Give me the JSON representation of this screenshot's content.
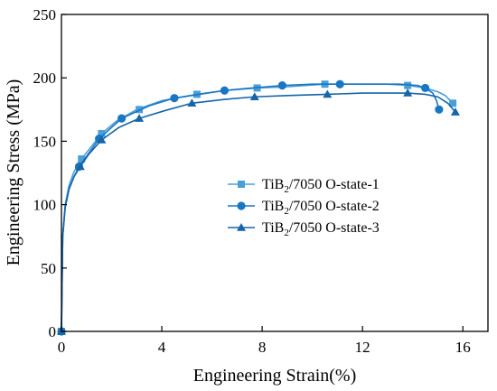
{
  "chart_data": {
    "type": "line",
    "xlabel": "Engineering Strain(%)",
    "ylabel": "Engineering Stress (MPa)",
    "xlim": [
      0,
      17
    ],
    "ylim": [
      0,
      250
    ],
    "xticks": [
      0,
      4,
      8,
      12,
      16
    ],
    "yticks": [
      0,
      50,
      100,
      150,
      200,
      250
    ],
    "grid": false,
    "legend_position": "right-middle",
    "series": [
      {
        "name": "TiB2/7050 O-state-1",
        "legend_parts": {
          "pre": "TiB",
          "sub": "2",
          "post": "/7050 O-state-1"
        },
        "color": "#4a9fd8",
        "marker": "square",
        "x": [
          0,
          0.05,
          0.15,
          0.3,
          0.5,
          0.8,
          1.2,
          1.6,
          2.2,
          3.0,
          4.0,
          5.4,
          6.5,
          7.8,
          9.0,
          10.5,
          12.0,
          13.0,
          13.8,
          14.5,
          15.0,
          15.3,
          15.6
        ],
        "y": [
          0,
          75,
          100,
          115,
          126,
          136,
          146,
          156,
          166,
          175,
          182,
          187,
          190,
          192,
          193,
          195,
          195,
          195,
          194,
          192,
          189,
          186,
          180
        ],
        "marker_x": [
          0,
          0.8,
          1.6,
          3.1,
          5.4,
          7.8,
          10.5,
          13.8,
          15.6
        ],
        "marker_y": [
          0,
          136,
          156,
          175,
          187,
          192,
          195,
          194,
          180
        ]
      },
      {
        "name": "TiB2/7050 O-state-2",
        "legend_parts": {
          "pre": "TiB",
          "sub": "2",
          "post": "/7050 O-state-2"
        },
        "color": "#1976c2",
        "marker": "circle",
        "x": [
          0,
          0.05,
          0.15,
          0.3,
          0.5,
          0.7,
          1.0,
          1.5,
          2.4,
          3.5,
          4.5,
          5.5,
          6.5,
          7.6,
          8.8,
          10.0,
          11.1,
          12.5,
          13.5,
          14.2,
          14.5,
          14.8,
          14.95,
          15.05
        ],
        "y": [
          0,
          75,
          98,
          112,
          122,
          130,
          138,
          152,
          168,
          178,
          184,
          187,
          190,
          192,
          194,
          195,
          195,
          195,
          195,
          194,
          192,
          188,
          182,
          175
        ],
        "marker_x": [
          0,
          0.7,
          1.5,
          2.4,
          4.5,
          6.5,
          8.8,
          11.1,
          14.5,
          15.05
        ],
        "marker_y": [
          0,
          130,
          152,
          168,
          184,
          190,
          194,
          195,
          192,
          175
        ]
      },
      {
        "name": "TiB2/7050 O-state-3",
        "legend_parts": {
          "pre": "TiB",
          "sub": "2",
          "post": "/7050 O-state-3"
        },
        "color": "#1565a8",
        "marker": "triangle",
        "x": [
          0,
          0.05,
          0.15,
          0.3,
          0.5,
          0.75,
          1.1,
          1.6,
          2.3,
          3.1,
          4.1,
          5.2,
          6.5,
          7.7,
          9.0,
          10.6,
          12.0,
          13.0,
          13.8,
          14.5,
          15.0,
          15.4,
          15.7
        ],
        "y": [
          0,
          75,
          98,
          112,
          122,
          130,
          140,
          151,
          161,
          168,
          174,
          180,
          183,
          185,
          186,
          187,
          188,
          188,
          188,
          187,
          185,
          180,
          173
        ],
        "marker_x": [
          0,
          0.75,
          1.6,
          3.1,
          5.2,
          7.7,
          10.6,
          13.8,
          15.7
        ],
        "marker_y": [
          0,
          130,
          151,
          168,
          180,
          185,
          187,
          188,
          173
        ]
      }
    ]
  }
}
